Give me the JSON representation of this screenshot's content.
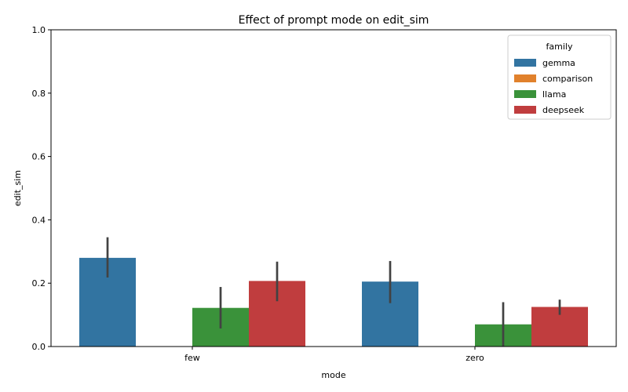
{
  "chart_data": {
    "type": "bar",
    "title": "Effect of prompt mode on edit_sim",
    "xlabel": "mode",
    "ylabel": "edit_sim",
    "categories": [
      "few",
      "zero"
    ],
    "ylim": [
      0,
      1.0
    ],
    "yticks": [
      0.0,
      0.2,
      0.4,
      0.6,
      0.8,
      1.0
    ],
    "ytick_labels": [
      "0.0",
      "0.2",
      "0.4",
      "0.6",
      "0.8",
      "1.0"
    ],
    "grid": false,
    "legend": {
      "title": "family",
      "placement": "top-right"
    },
    "series": [
      {
        "name": "gemma",
        "color": "#3274a1",
        "values": [
          0.28,
          0.205
        ],
        "ci_low": [
          0.218,
          0.137
        ],
        "ci_high": [
          0.345,
          0.27
        ]
      },
      {
        "name": "comparison",
        "color": "#e1812c",
        "values": [
          0,
          0
        ],
        "ci_low": [
          null,
          null
        ],
        "ci_high": [
          null,
          null
        ]
      },
      {
        "name": "llama",
        "color": "#3a923a",
        "values": [
          0.122,
          0.07
        ],
        "ci_low": [
          0.057,
          0.0
        ],
        "ci_high": [
          0.188,
          0.14
        ]
      },
      {
        "name": "deepseek",
        "color": "#c03d3e",
        "values": [
          0.207,
          0.125
        ],
        "ci_low": [
          0.143,
          0.1
        ],
        "ci_high": [
          0.268,
          0.148
        ]
      }
    ]
  }
}
